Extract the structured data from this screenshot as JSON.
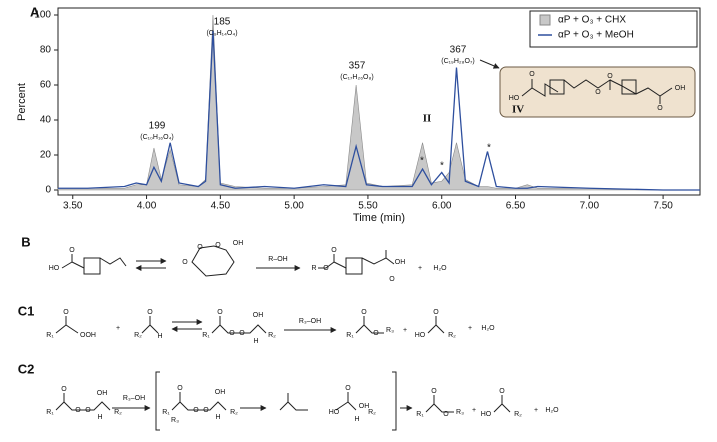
{
  "panel_a_label": "A",
  "chart_data": {
    "type": "line",
    "xlabel": "Time (min)",
    "ylabel": "Percent",
    "x": [
      3.4,
      3.6,
      3.85,
      3.93,
      4.0,
      4.05,
      4.1,
      4.16,
      4.22,
      4.35,
      4.4,
      4.45,
      4.5,
      4.6,
      4.8,
      5.0,
      5.2,
      5.35,
      5.42,
      5.49,
      5.6,
      5.8,
      5.87,
      5.93,
      6.0,
      6.05,
      6.1,
      6.16,
      6.25,
      6.31,
      6.37,
      6.5,
      6.58,
      6.65,
      7.0,
      7.5,
      7.75
    ],
    "series": [
      {
        "name": "αP + O₃ + CHX",
        "color": "#c8c8c8",
        "style": "area",
        "values": [
          1,
          1,
          1,
          3,
          3,
          24,
          6,
          23,
          3,
          2,
          6,
          100,
          4,
          2,
          1,
          1,
          2,
          3,
          60,
          4,
          2,
          3,
          27,
          4,
          5,
          10,
          27,
          6,
          2,
          2,
          1,
          1,
          3,
          1,
          1,
          0,
          0
        ]
      },
      {
        "name": "αP + O₃ + MeOH",
        "color": "#2e4f9e",
        "style": "line",
        "values": [
          1,
          1,
          2,
          4,
          3,
          13,
          5,
          27,
          4,
          2,
          5,
          91,
          3,
          1,
          2,
          1,
          3,
          2,
          25,
          3,
          2,
          2,
          12,
          3,
          10,
          4,
          70,
          5,
          2,
          22,
          2,
          1,
          1,
          2,
          1,
          0,
          0
        ]
      }
    ],
    "xlim": [
      3.4,
      7.75
    ],
    "ylim": [
      0,
      100
    ],
    "xticks": [
      {
        "value": 3.5,
        "label": "3.50"
      },
      {
        "value": 4.0,
        "label": "4.00"
      },
      {
        "value": 4.5,
        "label": "4.50"
      },
      {
        "value": 5.0,
        "label": "5.00"
      },
      {
        "value": 5.5,
        "label": "5.50"
      },
      {
        "value": 6.0,
        "label": "6.00"
      },
      {
        "value": 6.5,
        "label": "6.50"
      },
      {
        "value": 7.0,
        "label": "7.00"
      },
      {
        "value": 7.5,
        "label": "7.50"
      }
    ],
    "yticks": [
      0,
      20,
      40,
      60,
      80,
      100
    ],
    "legend": "upper right",
    "annotations": [
      "185",
      "(C₉H₁₄O₄)",
      "199",
      "(C₁₀H₁₆O₄)",
      "357",
      "(C₁₇H₂₆O₈)",
      "367",
      "(C₁₉H₂₈O₇)",
      "II",
      "*",
      "*",
      "*"
    ]
  },
  "structure_iv": {
    "label": "IV",
    "atoms": [
      "HO",
      "O",
      "O",
      "O",
      "O",
      "OH"
    ]
  },
  "schemes": {
    "b": {
      "label": "B",
      "texts": [
        "HO",
        "O",
        "O",
        "O",
        "O",
        "OH",
        "R–OH",
        "R",
        "O",
        "O",
        "OH",
        "O",
        "+",
        "H₂O"
      ]
    },
    "c1": {
      "label": "C1",
      "texts": [
        "R₁",
        "O",
        "OOH",
        "+",
        "R₂",
        "O",
        "H",
        "R₁",
        "O",
        "O",
        "O",
        "OH",
        "H",
        "R₂",
        "R₃–OH",
        "R₁",
        "O",
        "O",
        "R₃",
        "+",
        "HO",
        "O",
        "R₂",
        "+",
        "H₂O"
      ]
    },
    "c2": {
      "label": "C2",
      "texts": [
        "R₁",
        "O",
        "O",
        "O",
        "OH",
        "H",
        "R₂",
        "R₃–OH",
        "R₁",
        "O",
        "O",
        "O",
        "OH",
        "H",
        "R₂",
        "R₃",
        "HO",
        "O",
        "OH",
        "H",
        "R₂",
        "R₁",
        "O",
        "O",
        "R₃",
        "+",
        "HO",
        "O",
        "R₂",
        "+",
        "H₂O"
      ]
    }
  }
}
